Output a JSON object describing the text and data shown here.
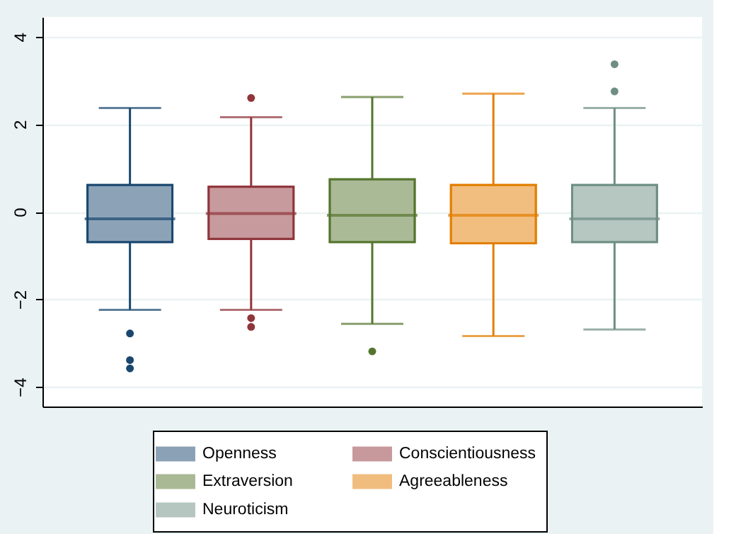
{
  "chart_data": {
    "type": "box",
    "categories": [
      null
    ],
    "series": [
      {
        "name": "Openness",
        "color": "#1a476f",
        "boxes": [
          {
            "low": -2.24,
            "q1": -0.69,
            "median": -0.16,
            "q3": 0.61,
            "high": 2.37,
            "outliers": [
              -2.78,
              -3.39,
              -3.58
            ]
          }
        ]
      },
      {
        "name": "Conscientiousness",
        "color": "#90353b",
        "boxes": [
          {
            "low": -2.24,
            "q1": -0.62,
            "median": -0.04,
            "q3": 0.57,
            "high": 2.16,
            "outliers": [
              2.6,
              -2.43,
              -2.63
            ]
          }
        ]
      },
      {
        "name": "Extraversion",
        "color": "#55752f",
        "boxes": [
          {
            "low": -2.56,
            "q1": -0.69,
            "median": -0.08,
            "q3": 0.74,
            "high": 2.62,
            "outliers": [
              -3.19
            ]
          }
        ]
      },
      {
        "name": "Agreeableness",
        "color": "#e37e00",
        "boxes": [
          {
            "low": -2.84,
            "q1": -0.72,
            "median": -0.08,
            "q3": 0.61,
            "high": 2.7
          }
        ]
      },
      {
        "name": "Neuroticism",
        "color": "#6e8e84",
        "boxes": [
          {
            "low": -2.69,
            "q1": -0.69,
            "median": -0.16,
            "q3": 0.61,
            "high": 2.37,
            "outliers": [
              3.37,
              2.75
            ]
          }
        ]
      }
    ],
    "ylim": [
      -4.45,
      4.45
    ],
    "yticks": [
      {
        "value": -4,
        "label": "−4"
      },
      {
        "value": -2,
        "label": "−2"
      },
      0,
      2,
      4
    ],
    "grid": "y",
    "legend": "bottom",
    "tick_labels": "y",
    "marker": "circle"
  }
}
